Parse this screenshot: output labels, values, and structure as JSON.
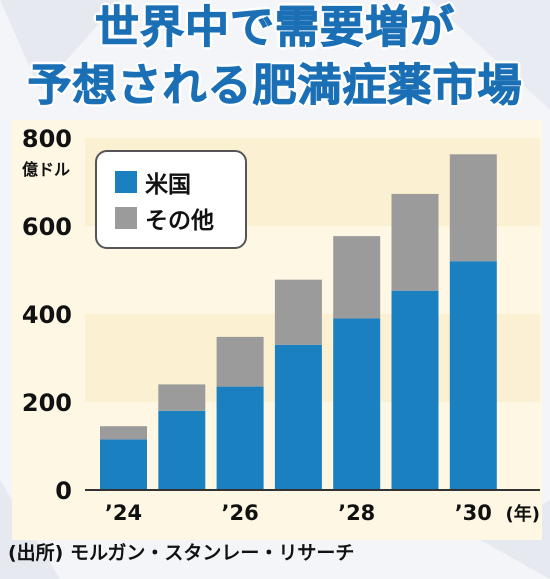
{
  "title_line1": "世界中で需要増が",
  "title_line2": "予想される肥満症薬市場",
  "source": "(出所) モルガン・スタンレー・リサーチ",
  "chart_data": {
    "type": "bar",
    "stacked": true,
    "ylabel": "億ドル",
    "xlabel": "(年)",
    "ylim": [
      0,
      800
    ],
    "yticks": [
      0,
      200,
      400,
      600,
      800
    ],
    "categories": [
      "2024",
      "2025",
      "2026",
      "2027",
      "2028",
      "2029",
      "2030"
    ],
    "x_tick_labels": [
      "’24",
      "",
      "’26",
      "",
      "’28",
      "",
      "’30"
    ],
    "series": [
      {
        "name": "米国",
        "color": "#1a80c0",
        "values": [
          115,
          180,
          235,
          330,
          390,
          453,
          520
        ]
      },
      {
        "name": "その他",
        "color": "#9b9b9b",
        "values": [
          30,
          60,
          113,
          148,
          187,
          220,
          243
        ]
      }
    ],
    "legend_position": "top-left",
    "grid": false
  }
}
